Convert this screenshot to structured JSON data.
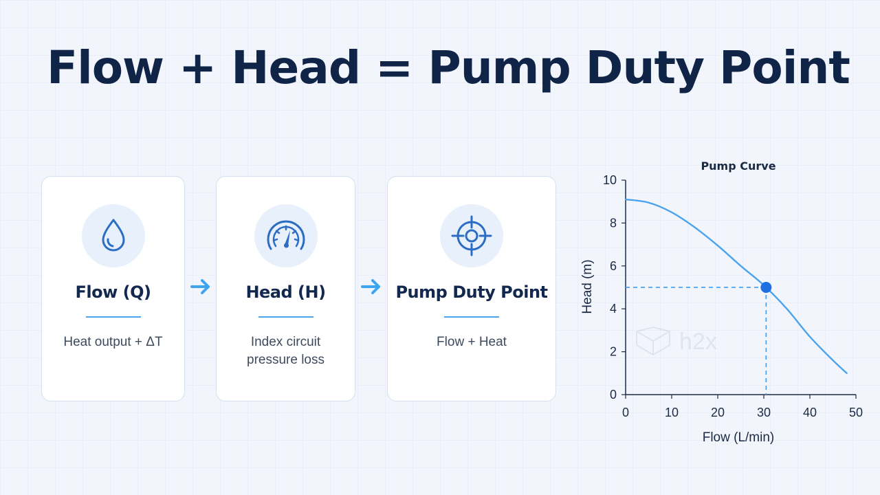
{
  "title": "Flow + Head = Pump Duty Point",
  "cards": [
    {
      "icon": "water-drop-icon",
      "title": "Flow (Q)",
      "text_lines": [
        "Heat output + ΔT"
      ]
    },
    {
      "icon": "pressure-gauge-icon",
      "title": "Head (H)",
      "text_lines": [
        "Index circuit",
        "pressure loss"
      ]
    },
    {
      "icon": "target-crosshair-icon",
      "title": "Pump Duty Point",
      "text_lines": [
        "Flow + Heat"
      ]
    }
  ],
  "arrows": [
    "arrow-right-icon",
    "arrow-right-icon"
  ],
  "watermark": "h2x",
  "colors": {
    "title": "#0f2447",
    "accent": "#4aa3ee",
    "icon": "#2b6cc4",
    "curve": "#4aa3ee",
    "duty_point": "#1f6fe0"
  },
  "chart_data": {
    "type": "line",
    "title": "Pump Curve",
    "xlabel": "Flow (L/min)",
    "ylabel": "Head (m)",
    "xlim": [
      0,
      50
    ],
    "ylim": [
      0,
      10
    ],
    "xticks": [
      0,
      10,
      20,
      30,
      40,
      50
    ],
    "yticks": [
      0,
      2,
      4,
      6,
      8,
      10
    ],
    "series": [
      {
        "x": [
          0,
          5,
          10,
          15,
          20,
          25,
          30,
          35,
          40,
          45,
          48
        ],
        "y": [
          9.1,
          8.95,
          8.5,
          7.8,
          6.95,
          6.0,
          5.1,
          4.0,
          2.7,
          1.6,
          1.0
        ]
      }
    ],
    "duty_point": {
      "x": 30.5,
      "y": 5.0
    },
    "grid": false
  }
}
